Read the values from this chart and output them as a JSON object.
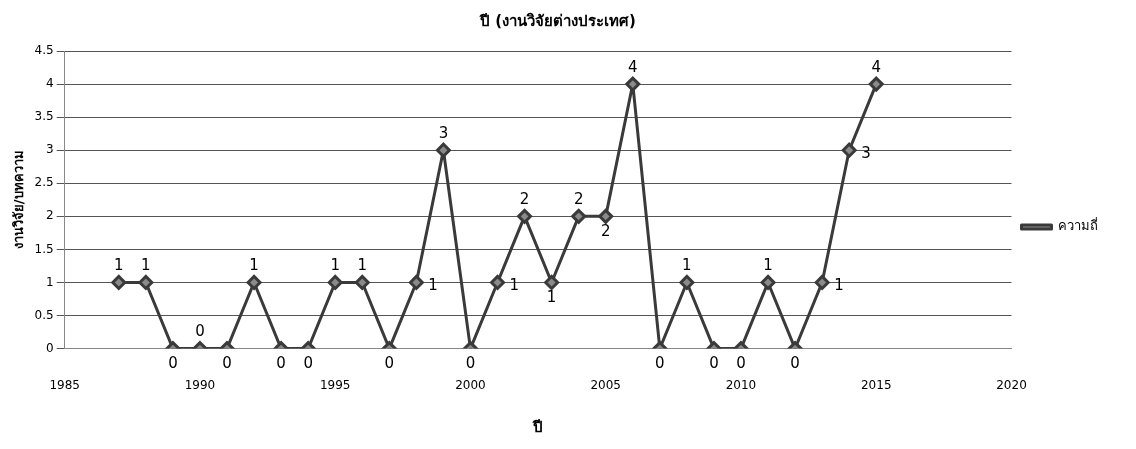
{
  "chart_data": {
    "type": "line",
    "title": "ปี (งานวิจัยต่างประเทศ)",
    "xlabel": "ปี",
    "ylabel": "งานวิจัย/บทความ",
    "x": [
      1987,
      1988,
      1989,
      1990,
      1991,
      1992,
      1993,
      1994,
      1995,
      1996,
      1997,
      1998,
      1999,
      2000,
      2001,
      2002,
      2003,
      2004,
      2005,
      2006,
      2007,
      2008,
      2009,
      2010,
      2011,
      2012,
      2013,
      2014,
      2015
    ],
    "series": [
      {
        "name": "ความถี่",
        "color": "#3a3a3a",
        "values": [
          1,
          1,
          0,
          0,
          0,
          1,
          0,
          0,
          1,
          1,
          0,
          1,
          3,
          0,
          1,
          2,
          1,
          2,
          2,
          4,
          0,
          1,
          0,
          0,
          1,
          0,
          1,
          3,
          4
        ]
      }
    ],
    "xlim": [
      1985,
      2020
    ],
    "xticks": [
      1985,
      1990,
      1995,
      2000,
      2005,
      2010,
      2015,
      2020
    ],
    "ylim": [
      0,
      4.5
    ],
    "yticks": [
      0,
      0.5,
      1,
      1.5,
      2,
      2.5,
      3,
      3.5,
      4,
      4.5
    ],
    "grid": "y",
    "legend": "right",
    "marker": "diamond",
    "line_style": "solid",
    "data_labels": true
  }
}
